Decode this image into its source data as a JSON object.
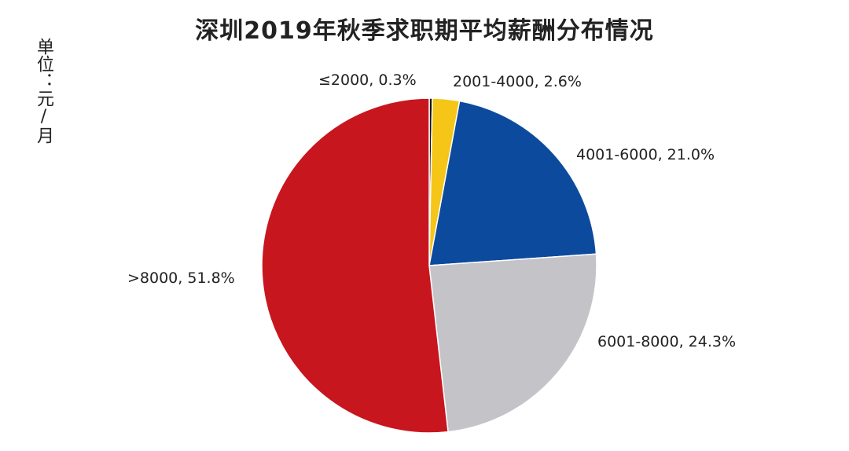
{
  "chart_data": {
    "type": "pie",
    "title": "深圳2019年秋季求职期平均薪酬分布情况",
    "unit_label": "单位：元/月",
    "slices": [
      {
        "label": "≤2000, 0.3%",
        "category": "≤2000",
        "value": 0.3,
        "color": "#111111"
      },
      {
        "label": "2001-4000, 2.6%",
        "category": "2001-4000",
        "value": 2.6,
        "color": "#f5c518"
      },
      {
        "label": "4001-6000, 21.0%",
        "category": "4001-6000",
        "value": 21.0,
        "color": "#0c4a9e"
      },
      {
        "label": "6001-8000, 24.3%",
        "category": "6001-8000",
        "value": 24.3,
        "color": "#c4c4c8"
      },
      {
        "label": ">8000, 51.8%",
        "category": ">8000",
        "value": 51.8,
        "color": "#c8161e"
      }
    ]
  }
}
